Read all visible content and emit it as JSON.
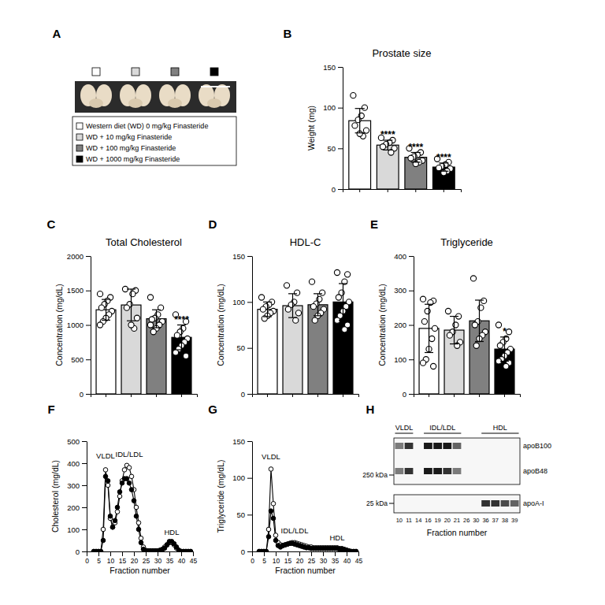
{
  "panel_a": {
    "label": "A",
    "groups": [
      {
        "text": "Western diet (WD) 0 mg/kg Finasteride",
        "color": "#ffffff"
      },
      {
        "text": "WD + 10 mg/kg Finasteride",
        "color": "#d9d9d9"
      },
      {
        "text": "WD + 100 mg/kg Finasteride",
        "color": "#808080"
      },
      {
        "text": "WD + 1000 mg/kg Finasteride",
        "color": "#000000"
      }
    ]
  },
  "chart_data": [
    {
      "type": "bar",
      "label": "B",
      "title": "Prostate size",
      "ylabel": "Weight (mg)",
      "categories": [
        null,
        null,
        null,
        null
      ],
      "values": [
        84,
        54,
        39,
        27
      ],
      "errors": [
        15,
        6,
        6,
        5
      ],
      "points": [
        [
          115,
          100,
          90,
          85,
          78,
          72,
          65,
          68
        ],
        [
          63,
          60,
          57,
          55,
          52,
          50,
          45
        ],
        [
          50,
          45,
          42,
          40,
          38,
          35,
          33,
          31
        ],
        [
          37,
          33,
          30,
          28,
          26,
          25,
          22,
          20
        ]
      ],
      "annotations": [
        null,
        "****",
        "****",
        "****"
      ],
      "colors": [
        "#ffffff",
        "#d9d9d9",
        "#808080",
        "#000000"
      ],
      "ylim": [
        0,
        150
      ],
      "yticks": [
        0,
        50,
        100,
        150
      ],
      "tick_labels": "y"
    },
    {
      "type": "bar",
      "label": "C",
      "title": "Total Cholesterol",
      "ylabel": "Concentration (mg/dL)",
      "categories": [
        null,
        null,
        null,
        null
      ],
      "values": [
        1220,
        1290,
        1090,
        820
      ],
      "errors": [
        150,
        230,
        130,
        180
      ],
      "points": [
        [
          1450,
          1400,
          1350,
          1300,
          1250,
          1200,
          1150,
          1100,
          1050,
          1000
        ],
        [
          1520,
          1500,
          1450,
          1300,
          1250,
          1100,
          950,
          1000
        ],
        [
          1400,
          1250,
          1150,
          1100,
          1080,
          1050,
          1000,
          950,
          900,
          1000
        ],
        [
          1150,
          1050,
          950,
          900,
          850,
          800,
          750,
          700,
          650,
          600,
          550
        ]
      ],
      "annotations": [
        null,
        null,
        null,
        "****"
      ],
      "colors": [
        "#ffffff",
        "#d9d9d9",
        "#808080",
        "#000000"
      ],
      "ylim": [
        0,
        2000
      ],
      "yticks": [
        0,
        500,
        1000,
        1500,
        2000
      ],
      "tick_labels": "y"
    },
    {
      "type": "bar",
      "label": "D",
      "title": "HDL-C",
      "ylabel": "Concentration (mg/dL)",
      "categories": [
        null,
        null,
        null,
        null
      ],
      "values": [
        92,
        96,
        97,
        100
      ],
      "errors": [
        8,
        13,
        12,
        20
      ],
      "points": [
        [
          105,
          100,
          97,
          95,
          92,
          90,
          88,
          85,
          82
        ],
        [
          118,
          110,
          100,
          97,
          92,
          88,
          80
        ],
        [
          122,
          110,
          103,
          98,
          95,
          92,
          88,
          85,
          80
        ],
        [
          132,
          130,
          122,
          110,
          105,
          100,
          95,
          90,
          85,
          80,
          75,
          70
        ]
      ],
      "annotations": [
        null,
        null,
        null,
        null
      ],
      "colors": [
        "#ffffff",
        "#d9d9d9",
        "#808080",
        "#000000"
      ],
      "ylim": [
        0,
        150
      ],
      "yticks": [
        0,
        50,
        100,
        150
      ],
      "tick_labels": "y"
    },
    {
      "type": "bar",
      "label": "E",
      "title": "Triglyceride",
      "ylabel": "Concentration (mg/dL)",
      "categories": [
        null,
        null,
        null,
        null
      ],
      "values": [
        190,
        185,
        212,
        130
      ],
      "errors": [
        70,
        40,
        60,
        35
      ],
      "points": [
        [
          275,
          270,
          265,
          240,
          210,
          190,
          160,
          130,
          100,
          90,
          80
        ],
        [
          240,
          225,
          200,
          180,
          170,
          150,
          140
        ],
        [
          335,
          270,
          250,
          210,
          200,
          180,
          170,
          160,
          140
        ],
        [
          200,
          180,
          160,
          150,
          140,
          130,
          120,
          110,
          100,
          95,
          90,
          80
        ]
      ],
      "annotations": [
        null,
        null,
        null,
        "*"
      ],
      "colors": [
        "#ffffff",
        "#d9d9d9",
        "#808080",
        "#000000"
      ],
      "ylim": [
        0,
        400
      ],
      "yticks": [
        0,
        100,
        200,
        300,
        400
      ],
      "tick_labels": "y"
    },
    {
      "type": "line",
      "label": "F",
      "xlabel": "Fraction number",
      "ylabel": "Cholesterol (mg/dL)",
      "x": [
        3,
        4,
        5,
        6,
        7,
        8,
        9,
        10,
        11,
        12,
        13,
        14,
        15,
        16,
        17,
        18,
        19,
        20,
        21,
        22,
        23,
        24,
        25,
        26,
        27,
        28,
        29,
        30,
        31,
        32,
        33,
        34,
        35,
        36,
        37,
        38,
        39,
        40,
        41,
        42,
        43,
        44
      ],
      "series": [
        {
          "color": "#000000",
          "marker": "open-circle",
          "values": [
            0,
            0,
            0,
            0,
            100,
            370,
            300,
            150,
            110,
            130,
            180,
            250,
            320,
            370,
            390,
            380,
            340,
            280,
            200,
            130,
            60,
            20,
            5,
            3,
            3,
            3,
            3,
            3,
            5,
            10,
            20,
            30,
            40,
            40,
            30,
            15,
            5,
            0,
            0,
            0,
            0,
            0
          ]
        },
        {
          "color": "#000000",
          "marker": "filled-circle",
          "values": [
            0,
            0,
            0,
            0,
            50,
            340,
            320,
            160,
            110,
            140,
            200,
            270,
            310,
            330,
            330,
            310,
            280,
            230,
            160,
            100,
            40,
            10,
            3,
            3,
            2,
            2,
            2,
            3,
            5,
            8,
            15,
            30,
            45,
            45,
            35,
            20,
            5,
            0,
            0,
            0,
            0,
            0
          ]
        }
      ],
      "annotations": [
        {
          "text": "VLDL",
          "x": 8,
          "y": 420
        },
        {
          "text": "IDL/LDL",
          "x": 18,
          "y": 430
        },
        {
          "text": "HDL",
          "x": 36,
          "y": 75
        }
      ],
      "xlim": [
        0,
        45
      ],
      "xticks": [
        0,
        5,
        10,
        15,
        20,
        25,
        30,
        35,
        40,
        45
      ],
      "ylim": [
        0,
        500
      ],
      "yticks": [
        0,
        100,
        200,
        300,
        400,
        500
      ]
    },
    {
      "type": "line",
      "label": "G",
      "xlabel": "Fraction number",
      "ylabel": "Triglyceride (mg/dL)",
      "x": [
        3,
        4,
        5,
        6,
        7,
        8,
        9,
        10,
        11,
        12,
        13,
        14,
        15,
        16,
        17,
        18,
        19,
        20,
        21,
        22,
        23,
        24,
        25,
        26,
        27,
        28,
        29,
        30,
        31,
        32,
        33,
        34,
        35,
        36,
        37,
        38,
        39,
        40,
        41,
        42,
        43,
        44
      ],
      "series": [
        {
          "color": "#000000",
          "marker": "open-circle",
          "values": [
            0,
            0,
            0,
            0,
            30,
            112,
            65,
            22,
            12,
            9,
            8,
            9,
            10,
            11,
            12,
            12,
            11,
            10,
            9,
            8,
            7,
            6,
            6,
            5,
            5,
            5,
            5,
            5,
            5,
            5,
            5,
            5,
            5,
            5,
            4,
            4,
            3,
            2,
            1,
            0,
            0,
            0
          ]
        },
        {
          "color": "#000000",
          "marker": "filled-circle",
          "values": [
            0,
            0,
            0,
            0,
            20,
            55,
            45,
            15,
            8,
            6,
            8,
            9,
            10,
            11,
            11,
            10,
            9,
            8,
            7,
            6,
            5,
            5,
            4,
            4,
            4,
            4,
            4,
            4,
            4,
            4,
            4,
            4,
            4,
            4,
            3,
            3,
            2,
            1,
            0,
            0,
            0,
            0
          ]
        }
      ],
      "annotations": [
        {
          "text": "VLDL",
          "x": 8,
          "y": 125
        },
        {
          "text": "IDL/LDL",
          "x": 18,
          "y": 25
        },
        {
          "text": "HDL",
          "x": 36,
          "y": 15
        }
      ],
      "xlim": [
        0,
        45
      ],
      "xticks": [
        0,
        5,
        10,
        15,
        20,
        25,
        30,
        35,
        40,
        45
      ],
      "ylim": [
        0,
        150
      ],
      "yticks": [
        0,
        50,
        100,
        150
      ]
    }
  ],
  "panel_h": {
    "label": "H",
    "xlabel": "Fraction number",
    "regions": [
      {
        "text": "VLDL",
        "fractions": [
          10,
          11
        ]
      },
      {
        "text": "IDL/LDL",
        "fractions": [
          16,
          21
        ]
      },
      {
        "text": "HDL",
        "fractions": [
          36,
          39
        ]
      }
    ],
    "proteins": [
      "apoB100",
      "apoB48",
      "apoA-I"
    ],
    "markers": [
      {
        "value": 250,
        "label": "250 kDa"
      },
      {
        "value": 25,
        "label": "25 kDa"
      }
    ],
    "lanes": [
      {
        "fraction": 10,
        "signal": [
          0.5,
          0.5,
          0
        ]
      },
      {
        "fraction": 11,
        "signal": [
          0.8,
          0.8,
          0
        ]
      },
      {
        "fraction": 14,
        "signal": [
          0,
          0,
          0
        ]
      },
      {
        "fraction": 16,
        "signal": [
          0.9,
          0.9,
          0
        ]
      },
      {
        "fraction": 19,
        "signal": [
          0.9,
          0.9,
          0
        ]
      },
      {
        "fraction": 20,
        "signal": [
          0.9,
          0.8,
          0
        ]
      },
      {
        "fraction": 21,
        "signal": [
          0.6,
          0.5,
          0
        ]
      },
      {
        "fraction": 26,
        "signal": [
          0,
          0,
          0
        ]
      },
      {
        "fraction": 30,
        "signal": [
          0,
          0,
          0
        ]
      },
      {
        "fraction": 36,
        "signal": [
          0,
          0,
          0.8
        ]
      },
      {
        "fraction": 37,
        "signal": [
          0,
          0,
          0.8
        ]
      },
      {
        "fraction": 38,
        "signal": [
          0,
          0,
          0.7
        ]
      },
      {
        "fraction": 39,
        "signal": [
          0,
          0,
          0.6
        ]
      }
    ]
  }
}
